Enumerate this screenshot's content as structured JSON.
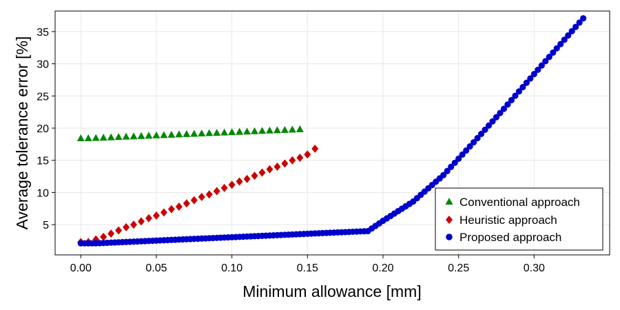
{
  "chart_data": {
    "type": "scatter",
    "title": "",
    "xlabel": "Minimum allowance [mm]",
    "ylabel": "Average tolerance error [%]",
    "xlim": [
      -0.017,
      0.35
    ],
    "ylim": [
      0.3,
      38.2
    ],
    "xticks": [
      "0.00",
      "0.05",
      "0.10",
      "0.15",
      "0.20",
      "0.25",
      "0.30"
    ],
    "yticks": [
      "5",
      "10",
      "15",
      "20",
      "25",
      "30",
      "35"
    ],
    "grid": true,
    "legend_position": "bottom-right",
    "series": [
      {
        "name": "Conventional approach",
        "marker": "triangle",
        "color": "#008800",
        "x": [
          0.0,
          0.005,
          0.01,
          0.015,
          0.02,
          0.025,
          0.03,
          0.035,
          0.04,
          0.045,
          0.05,
          0.055,
          0.06,
          0.065,
          0.07,
          0.075,
          0.08,
          0.085,
          0.09,
          0.095,
          0.1,
          0.105,
          0.11,
          0.115,
          0.12,
          0.125,
          0.13,
          0.135,
          0.14,
          0.145
        ],
        "y": [
          18.5,
          18.5,
          18.55,
          18.6,
          18.65,
          18.7,
          18.75,
          18.8,
          18.85,
          18.9,
          18.95,
          19.0,
          19.05,
          19.1,
          19.15,
          19.2,
          19.25,
          19.3,
          19.35,
          19.4,
          19.45,
          19.5,
          19.55,
          19.6,
          19.65,
          19.7,
          19.75,
          19.8,
          19.85,
          19.9
        ]
      },
      {
        "name": "Heuristic approach",
        "marker": "diamond",
        "color": "#cc0000",
        "x": [
          0.0,
          0.005,
          0.01,
          0.015,
          0.02,
          0.025,
          0.03,
          0.035,
          0.04,
          0.045,
          0.05,
          0.055,
          0.06,
          0.065,
          0.07,
          0.075,
          0.08,
          0.085,
          0.09,
          0.095,
          0.1,
          0.105,
          0.11,
          0.115,
          0.12,
          0.125,
          0.13,
          0.135,
          0.14,
          0.145,
          0.15,
          0.155
        ],
        "y": [
          2.3,
          2.3,
          2.7,
          3.1,
          3.6,
          4.1,
          4.6,
          5.0,
          5.5,
          6.0,
          6.4,
          6.9,
          7.4,
          7.8,
          8.3,
          8.8,
          9.3,
          9.7,
          10.2,
          10.7,
          11.2,
          11.7,
          12.1,
          12.6,
          13.1,
          13.6,
          14.0,
          14.5,
          15.0,
          15.4,
          15.9,
          16.8
        ]
      },
      {
        "name": "Proposed approach",
        "marker": "circle",
        "color": "#0000cc",
        "x_start": 0.0,
        "x_end": 0.333,
        "x_step": 0.0025,
        "knots": [
          [
            0.0,
            2.1
          ],
          [
            0.01,
            2.1
          ],
          [
            0.19,
            4.0
          ],
          [
            0.2,
            5.6
          ],
          [
            0.22,
            8.6
          ],
          [
            0.24,
            12.7
          ],
          [
            0.26,
            17.8
          ],
          [
            0.28,
            23.0
          ],
          [
            0.3,
            28.4
          ],
          [
            0.333,
            37.2
          ]
        ]
      }
    ]
  }
}
